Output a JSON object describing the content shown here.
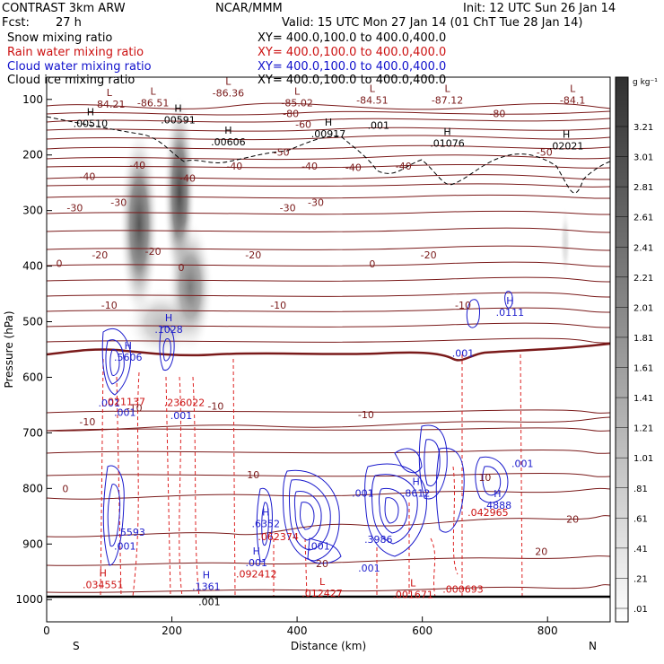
{
  "header": {
    "model": "CONTRAST  3km ARW",
    "org": "NCAR/MMM",
    "init": "Init: 12 UTC Sun 26 Jan 14",
    "fcst_label": "Fcst:",
    "fcst_value": "27 h",
    "valid": "Valid: 15 UTC Mon 27 Jan 14 (01 ChT Tue 28 Jan 14)"
  },
  "legend": [
    {
      "field": "Snow mixing ratio",
      "xsec": "XY= 400.0,100.0 to 400.0,400.0",
      "color": "#000000"
    },
    {
      "field": "Rain water mixing ratio",
      "xsec": "XY= 400.0,100.0 to 400.0,400.0",
      "color": "#cc1111"
    },
    {
      "field": "Cloud water mixing ratio",
      "xsec": "XY= 400.0,100.0 to 400.0,400.0",
      "color": "#1111cc"
    },
    {
      "field": "Cloud ice mixing ratio",
      "xsec": "XY= 400.0,100.0 to 400.0,400.0",
      "color": "#000000"
    }
  ],
  "chart_data": {
    "type": "cross-section",
    "xlabel": "Distance (km)",
    "ylabel": "Pressure (hPa)",
    "xlim": [
      0,
      900
    ],
    "ylim": [
      1040,
      60
    ],
    "x_ticks": [
      0,
      200,
      400,
      600,
      800
    ],
    "y_ticks": [
      100,
      200,
      300,
      400,
      500,
      600,
      700,
      800,
      900,
      1000
    ],
    "end_labels": {
      "left": "S",
      "right": "N"
    },
    "colorbar": {
      "unit_label": "g kg⁻¹",
      "levels": [
        ".01",
        ".21",
        ".41",
        ".61",
        ".81",
        "1.01",
        "1.21",
        "1.41",
        "1.61",
        "1.81",
        "2.01",
        "2.21",
        "2.41",
        "2.61",
        "2.81",
        "3.01",
        "3.21"
      ]
    },
    "temperature_contours": [
      {
        "x": 30,
        "p": 800,
        "label": "0"
      },
      {
        "x": 20,
        "p": 395,
        "label": "0"
      },
      {
        "x": 215,
        "p": 402,
        "label": "0"
      },
      {
        "x": 520,
        "p": 396,
        "label": "0"
      },
      {
        "x": 65,
        "p": 680,
        "label": "-10"
      },
      {
        "x": 140,
        "p": 655,
        "label": "-10"
      },
      {
        "x": 270,
        "p": 652,
        "label": "-10"
      },
      {
        "x": 510,
        "p": 667,
        "label": "-10"
      },
      {
        "x": 100,
        "p": 470,
        "label": "-10"
      },
      {
        "x": 370,
        "p": 470,
        "label": "-10"
      },
      {
        "x": 665,
        "p": 470,
        "label": "-10"
      },
      {
        "x": 85,
        "p": 380,
        "label": "-20"
      },
      {
        "x": 170,
        "p": 373,
        "label": "-20"
      },
      {
        "x": 330,
        "p": 380,
        "label": "-20"
      },
      {
        "x": 610,
        "p": 380,
        "label": "-20"
      },
      {
        "x": 45,
        "p": 295,
        "label": "-30"
      },
      {
        "x": 115,
        "p": 285,
        "label": "-30"
      },
      {
        "x": 385,
        "p": 295,
        "label": "-30"
      },
      {
        "x": 430,
        "p": 285,
        "label": "-30"
      },
      {
        "x": 145,
        "p": 218,
        "label": "-40"
      },
      {
        "x": 300,
        "p": 220,
        "label": "-40"
      },
      {
        "x": 420,
        "p": 220,
        "label": "-40"
      },
      {
        "x": 490,
        "p": 222,
        "label": "-40"
      },
      {
        "x": 570,
        "p": 220,
        "label": "-40"
      },
      {
        "x": 65,
        "p": 238,
        "label": "-40"
      },
      {
        "x": 225,
        "p": 242,
        "label": "-40"
      },
      {
        "x": 375,
        "p": 195,
        "label": "-50"
      },
      {
        "x": 795,
        "p": 195,
        "label": "-50"
      },
      {
        "x": 410,
        "p": 145,
        "label": "-60"
      },
      {
        "x": 390,
        "p": 125,
        "label": "-80"
      },
      {
        "x": 720,
        "p": 125,
        "label": "-80"
      },
      {
        "x": 440,
        "p": 935,
        "label": "20"
      },
      {
        "x": 790,
        "p": 913,
        "label": "20"
      },
      {
        "x": 840,
        "p": 855,
        "label": "20"
      },
      {
        "x": 330,
        "p": 775,
        "label": "10"
      },
      {
        "x": 700,
        "p": 780,
        "label": "10"
      }
    ],
    "low_high_markers": [
      {
        "x": 100,
        "p": 110,
        "mark": "L",
        "value": "-84.21"
      },
      {
        "x": 170,
        "p": 108,
        "mark": "L",
        "value": "-86.51"
      },
      {
        "x": 290,
        "p": 90,
        "mark": "L",
        "value": "-86.36"
      },
      {
        "x": 400,
        "p": 108,
        "mark": "L",
        "value": "-85.02"
      },
      {
        "x": 520,
        "p": 103,
        "mark": "L",
        "value": "-84.51"
      },
      {
        "x": 640,
        "p": 103,
        "mark": "L",
        "value": "-87.12"
      },
      {
        "x": 840,
        "p": 103,
        "mark": "L",
        "value": "-84.1"
      },
      {
        "x": 70,
        "p": 145,
        "mark": "H",
        "value": ".00510"
      },
      {
        "x": 210,
        "p": 138,
        "mark": "H",
        "value": ".00591"
      },
      {
        "x": 290,
        "p": 178,
        "mark": "H",
        "value": ".00606"
      },
      {
        "x": 450,
        "p": 163,
        "mark": "H",
        "value": ".00917"
      },
      {
        "x": 530,
        "p": 148,
        "mark": "",
        "value": ".001"
      },
      {
        "x": 640,
        "p": 180,
        "mark": "H",
        "value": ".01076"
      },
      {
        "x": 830,
        "p": 185,
        "mark": "H",
        "value": ".02021"
      },
      {
        "x": 740,
        "p": 485,
        "mark": "H",
        "value": ".0111"
      },
      {
        "x": 195,
        "p": 515,
        "mark": "H",
        "value": ".1028"
      },
      {
        "x": 130,
        "p": 565,
        "mark": "H",
        "value": ".5606"
      },
      {
        "x": 665,
        "p": 558,
        "mark": "",
        "value": ".001"
      },
      {
        "x": 100,
        "p": 648,
        "mark": "",
        "value": ".001"
      },
      {
        "x": 125,
        "p": 645,
        "mark": "",
        "value": ".021137"
      },
      {
        "x": 220,
        "p": 647,
        "mark": "",
        "value": ".236022"
      },
      {
        "x": 125,
        "p": 665,
        "mark": "",
        "value": ".001"
      },
      {
        "x": 215,
        "p": 670,
        "mark": "",
        "value": ".001"
      },
      {
        "x": 760,
        "p": 757,
        "mark": "",
        "value": ".001"
      },
      {
        "x": 135,
        "p": 880,
        "mark": "",
        "value": ".5593"
      },
      {
        "x": 125,
        "p": 905,
        "mark": "",
        "value": ".001"
      },
      {
        "x": 350,
        "p": 865,
        "mark": "H",
        "value": ".6352"
      },
      {
        "x": 590,
        "p": 810,
        "mark": "H",
        "value": ".8612"
      },
      {
        "x": 720,
        "p": 832,
        "mark": "H",
        "value": ".4888"
      },
      {
        "x": 705,
        "p": 845,
        "mark": "",
        "value": ".042965"
      },
      {
        "x": 505,
        "p": 810,
        "mark": "",
        "value": ".001"
      },
      {
        "x": 370,
        "p": 888,
        "mark": "",
        "value": ".062374"
      },
      {
        "x": 530,
        "p": 893,
        "mark": "",
        "value": ".3986"
      },
      {
        "x": 335,
        "p": 935,
        "mark": "H",
        "value": ".001"
      },
      {
        "x": 335,
        "p": 955,
        "mark": "",
        "value": ".092412"
      },
      {
        "x": 515,
        "p": 945,
        "mark": "",
        "value": ".001"
      },
      {
        "x": 435,
        "p": 905,
        "mark": "",
        "value": ".001"
      },
      {
        "x": 90,
        "p": 975,
        "mark": "H",
        "value": ".034551"
      },
      {
        "x": 255,
        "p": 978,
        "mark": "H",
        "value": ".1361"
      },
      {
        "x": 260,
        "p": 1005,
        "mark": "",
        "value": ".001"
      },
      {
        "x": 440,
        "p": 990,
        "mark": "L",
        "value": ".012427"
      },
      {
        "x": 585,
        "p": 992,
        "mark": "L",
        "value": ".001671"
      },
      {
        "x": 665,
        "p": 983,
        "mark": "",
        "value": ".000693"
      }
    ]
  }
}
